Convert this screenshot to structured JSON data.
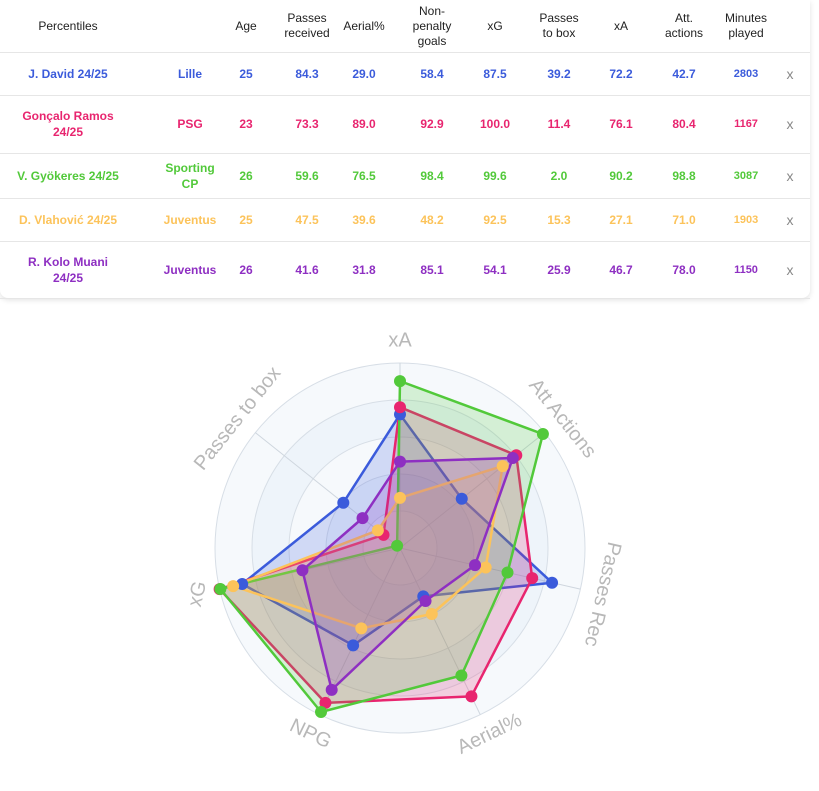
{
  "table": {
    "headers": [
      {
        "key": "name",
        "label": "Percentiles"
      },
      {
        "key": "club",
        "label": ""
      },
      {
        "key": "age",
        "label": "Age"
      },
      {
        "key": "passes_received",
        "label": "Passes\nreceived"
      },
      {
        "key": "aerial",
        "label": "Aerial%"
      },
      {
        "key": "npg",
        "label": "Non-\npenalty\ngoals"
      },
      {
        "key": "xg",
        "label": "xG"
      },
      {
        "key": "passes_box",
        "label": "Passes\nto box"
      },
      {
        "key": "xa",
        "label": "xA"
      },
      {
        "key": "att_actions",
        "label": "Att.\nactions"
      },
      {
        "key": "minutes",
        "label": "Minutes\nplayed"
      }
    ],
    "remove_label": "x",
    "rows": [
      {
        "name": "J. David 24/25",
        "club": "Lille",
        "age": "25",
        "passes_received": "84.3",
        "aerial": "29.0",
        "npg": "58.4",
        "xg": "87.5",
        "passes_box": "39.2",
        "xa": "72.2",
        "att_actions": "42.7",
        "minutes": "2803",
        "color": "#3b5bdb"
      },
      {
        "name": "Gonçalo Ramos\n24/25",
        "club": "PSG",
        "age": "23",
        "passes_received": "73.3",
        "aerial": "89.0",
        "npg": "92.9",
        "xg": "100.0",
        "passes_box": "11.4",
        "xa": "76.1",
        "att_actions": "80.4",
        "minutes": "1167",
        "color": "#e8256f"
      },
      {
        "name": "V. Gyökeres 24/25",
        "club": "Sporting\nCP",
        "age": "26",
        "passes_received": "59.6",
        "aerial": "76.5",
        "npg": "98.4",
        "xg": "99.6",
        "passes_box": "2.0",
        "xa": "90.2",
        "att_actions": "98.8",
        "minutes": "3087",
        "color": "#52c93a"
      },
      {
        "name": "D. Vlahović 24/25",
        "club": "Juventus",
        "age": "25",
        "passes_received": "47.5",
        "aerial": "39.6",
        "npg": "48.2",
        "xg": "92.5",
        "passes_box": "15.3",
        "xa": "27.1",
        "att_actions": "71.0",
        "minutes": "1903",
        "color": "#fcc35a"
      },
      {
        "name": "R. Kolo Muani\n24/25",
        "club": "Juventus",
        "age": "26",
        "passes_received": "41.6",
        "aerial": "31.8",
        "npg": "85.1",
        "xg": "54.1",
        "passes_box": "25.9",
        "xa": "46.7",
        "att_actions": "78.0",
        "minutes": "1150",
        "color": "#8e2fc2"
      }
    ]
  },
  "chart_data": {
    "type": "radar",
    "axes": [
      "xA",
      "Att Actions",
      "Passes Rec",
      "Aerial%",
      "NPG",
      "xG",
      "Passes to box"
    ],
    "range": [
      0,
      100
    ],
    "series": [
      {
        "name": "J. David 24/25",
        "color": "#3b5bdb",
        "values": [
          72.2,
          42.7,
          84.3,
          29.0,
          58.4,
          87.5,
          39.2
        ]
      },
      {
        "name": "Gonçalo Ramos 24/25",
        "color": "#e8256f",
        "values": [
          76.1,
          80.4,
          73.3,
          89.0,
          92.9,
          100.0,
          11.4
        ]
      },
      {
        "name": "V. Gyökeres 24/25",
        "color": "#52c93a",
        "values": [
          90.2,
          98.8,
          59.6,
          76.5,
          98.4,
          99.6,
          2.0
        ]
      },
      {
        "name": "D. Vlahović 24/25",
        "color": "#fcc35a",
        "values": [
          27.1,
          71.0,
          47.5,
          39.6,
          48.2,
          92.5,
          15.3
        ]
      },
      {
        "name": "R. Kolo Muani 24/25",
        "color": "#8e2fc2",
        "values": [
          46.7,
          78.0,
          41.6,
          31.8,
          85.1,
          54.1,
          25.9
        ]
      }
    ]
  }
}
